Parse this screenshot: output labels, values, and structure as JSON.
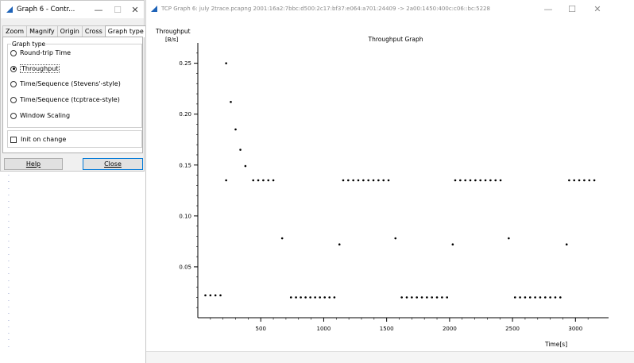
{
  "control_window": {
    "title": "Graph 6 - Contr...",
    "tabs": [
      {
        "label": "Zoom"
      },
      {
        "label": "Magnify"
      },
      {
        "label": "Origin"
      },
      {
        "label": "Cross"
      },
      {
        "label": "Graph type",
        "active": true
      }
    ],
    "graph_type_group_title": "Graph type",
    "graph_types": [
      {
        "label": "Round-trip Time",
        "selected": false
      },
      {
        "label": "Throughput",
        "selected": true
      },
      {
        "label": "Time/Sequence (Stevens'-style)",
        "selected": false
      },
      {
        "label": "Time/Sequence (tcptrace-style)",
        "selected": false
      },
      {
        "label": "Window Scaling",
        "selected": false
      }
    ],
    "init_on_change": {
      "label": "Init on change",
      "checked": false
    },
    "help_button": "Help",
    "close_button": "Close"
  },
  "graph_window": {
    "title": "TCP Graph 6: july 2trace.pcapng 2001:16a2:7bbc:d500:2c17:bf37:e064:a701:24409 -> 2a00:1450:400c:c06::bc:5228"
  },
  "chart_data": {
    "type": "scatter",
    "title": "Throughput Graph",
    "ylabel": "Throughput",
    "yunit": "[B/s]",
    "xlabel": "Time[s]",
    "xlim": [
      0,
      3200
    ],
    "ylim": [
      0,
      0.27
    ],
    "xticks": [
      500,
      1000,
      1500,
      2000,
      2500,
      3000
    ],
    "yticks": [
      0.05,
      0.1,
      0.15,
      0.2,
      0.25
    ],
    "ytick_labels": [
      "0.05",
      "0.10",
      "0.15",
      "0.20",
      "0.25"
    ],
    "series": [
      {
        "points": [
          [
            60,
            0.022
          ],
          [
            100,
            0.022
          ],
          [
            140,
            0.022
          ],
          [
            180,
            0.022
          ],
          [
            225,
            0.25
          ],
          [
            262,
            0.212
          ],
          [
            300,
            0.185
          ],
          [
            338,
            0.165
          ],
          [
            378,
            0.149
          ],
          [
            225,
            0.135
          ],
          [
            440,
            0.135
          ],
          [
            480,
            0.135
          ],
          [
            520,
            0.135
          ],
          [
            560,
            0.135
          ],
          [
            600,
            0.135
          ],
          [
            670,
            0.078
          ],
          [
            740,
            0.02
          ],
          [
            780,
            0.02
          ],
          [
            818,
            0.02
          ],
          [
            856,
            0.02
          ],
          [
            894,
            0.02
          ],
          [
            932,
            0.02
          ],
          [
            970,
            0.02
          ],
          [
            1008,
            0.02
          ],
          [
            1046,
            0.02
          ],
          [
            1085,
            0.02
          ],
          [
            1125,
            0.072
          ],
          [
            1155,
            0.135
          ],
          [
            1195,
            0.135
          ],
          [
            1235,
            0.135
          ],
          [
            1275,
            0.135
          ],
          [
            1315,
            0.135
          ],
          [
            1355,
            0.135
          ],
          [
            1395,
            0.135
          ],
          [
            1435,
            0.135
          ],
          [
            1475,
            0.135
          ],
          [
            1515,
            0.135
          ],
          [
            1570,
            0.078
          ],
          [
            1620,
            0.02
          ],
          [
            1660,
            0.02
          ],
          [
            1700,
            0.02
          ],
          [
            1740,
            0.02
          ],
          [
            1780,
            0.02
          ],
          [
            1820,
            0.02
          ],
          [
            1860,
            0.02
          ],
          [
            1900,
            0.02
          ],
          [
            1940,
            0.02
          ],
          [
            1980,
            0.02
          ],
          [
            2025,
            0.072
          ],
          [
            2045,
            0.135
          ],
          [
            2085,
            0.135
          ],
          [
            2125,
            0.135
          ],
          [
            2165,
            0.135
          ],
          [
            2205,
            0.135
          ],
          [
            2245,
            0.135
          ],
          [
            2285,
            0.135
          ],
          [
            2325,
            0.135
          ],
          [
            2365,
            0.135
          ],
          [
            2405,
            0.135
          ],
          [
            2470,
            0.078
          ],
          [
            2520,
            0.02
          ],
          [
            2560,
            0.02
          ],
          [
            2600,
            0.02
          ],
          [
            2640,
            0.02
          ],
          [
            2680,
            0.02
          ],
          [
            2720,
            0.02
          ],
          [
            2760,
            0.02
          ],
          [
            2800,
            0.02
          ],
          [
            2840,
            0.02
          ],
          [
            2880,
            0.02
          ],
          [
            2930,
            0.072
          ],
          [
            2950,
            0.135
          ],
          [
            2990,
            0.135
          ],
          [
            3030,
            0.135
          ],
          [
            3070,
            0.135
          ],
          [
            3110,
            0.135
          ],
          [
            3150,
            0.135
          ]
        ]
      }
    ],
    "grid": false,
    "legend": "none"
  }
}
